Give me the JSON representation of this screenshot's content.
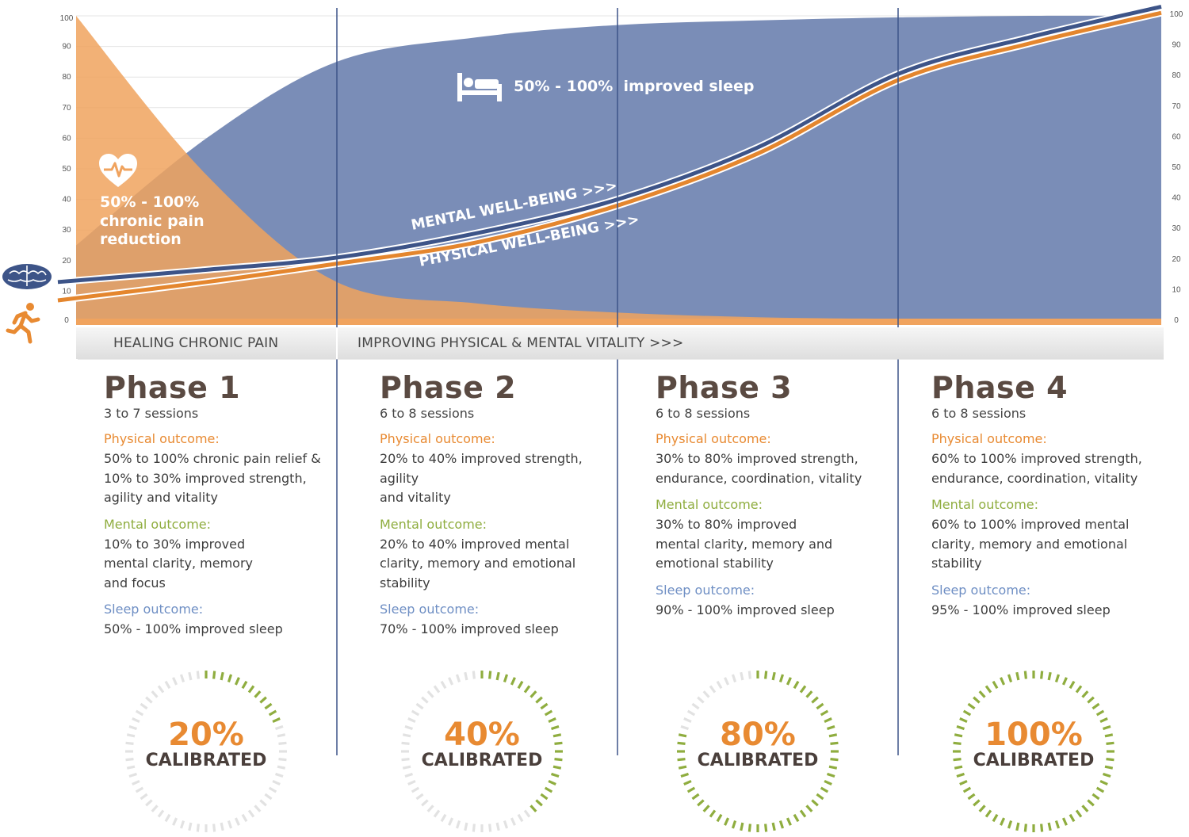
{
  "chart_data": {
    "type": "area",
    "x_phase_boundaries": [
      0,
      1,
      2,
      3,
      4
    ],
    "ylim": [
      0,
      100
    ],
    "yticks": [
      "0",
      "10",
      "20",
      "30",
      "40",
      "50",
      "60",
      "70",
      "80",
      "90",
      "100"
    ],
    "series": [
      {
        "role": "pain-area",
        "color": "#f0a35e",
        "x": [
          0,
          0.5,
          1,
          1.5,
          2,
          2.5,
          3,
          3.5,
          4
        ],
        "values": [
          100,
          48,
          13,
          6,
          3,
          1.5,
          1,
          1,
          1
        ]
      },
      {
        "role": "sleep-area",
        "color": "#7a8db7",
        "x": [
          0,
          0.5,
          1,
          1.5,
          2,
          2.5,
          3,
          3.5,
          4
        ],
        "values": [
          25,
          60,
          85,
          93,
          97,
          98.5,
          99.5,
          100,
          100
        ]
      },
      {
        "name": "MENTAL WELL-BEING >>>",
        "color": "#3d5488",
        "x": [
          -0.07,
          0.5,
          1,
          1.5,
          2,
          2.5,
          3,
          3.5,
          4
        ],
        "values": [
          13,
          17,
          21,
          29,
          40,
          57,
          81,
          93,
          103
        ]
      },
      {
        "name": "PHYSICAL WELL-BEING >>>",
        "color": "#e4862e",
        "x": [
          -0.07,
          0.5,
          1,
          1.5,
          2,
          2.5,
          3,
          3.5,
          4
        ],
        "values": [
          7,
          13,
          19,
          26,
          38,
          55,
          79,
          91,
          101
        ]
      }
    ],
    "annotations": {
      "sleep": "50% - 100%  improved sleep",
      "pain": "50% - 100%\nchronic pain\nreduction"
    },
    "grid": true
  },
  "icons": {
    "heart": "heart-pulse-icon",
    "bed": "bed-icon",
    "brain": "brain-icon",
    "runner": "runner-icon"
  },
  "colors": {
    "orange": "#e88a32",
    "blue": "#7a8db7",
    "dark_blue": "#3d5488",
    "green": "#8fad3f",
    "gray_track": "#dcdcdc"
  },
  "bands": {
    "left": "HEALING CHRONIC PAIN",
    "right": "IMPROVING  PHYSICAL & MENTAL VITALITY >>>"
  },
  "phases": [
    {
      "title": "Phase 1",
      "sessions": "3 to 7 sessions",
      "physical_label": "Physical outcome:",
      "physical": "50% to 100% chronic pain relief &\n10% to 30% improved strength,\nagility and vitality",
      "mental_label": "Mental outcome:",
      "mental": "10% to 30% improved\nmental clarity, memory\nand focus",
      "sleep_label": "Sleep outcome:",
      "sleep": "50% - 100% improved sleep",
      "percent": "20%",
      "percent_value": 0.2,
      "calibrated": "CALIBRATED"
    },
    {
      "title": "Phase 2",
      "sessions": "6 to 8 sessions",
      "physical_label": "Physical outcome:",
      "physical": "20% to 40% improved strength,\nagility\nand vitality",
      "mental_label": "Mental outcome:",
      "mental": "20% to 40% improved mental\nclarity, memory and emotional\nstability",
      "sleep_label": "Sleep outcome:",
      "sleep": "70% - 100% improved sleep",
      "percent": "40%",
      "percent_value": 0.4,
      "calibrated": "CALIBRATED"
    },
    {
      "title": "Phase 3",
      "sessions": "6 to 8 sessions",
      "physical_label": "Physical outcome:",
      "physical": "30% to 80% improved strength,\nendurance, coordination, vitality",
      "mental_label": "Mental outcome:",
      "mental": "30% to 80% improved\nmental clarity, memory and\nemotional stability",
      "sleep_label": "Sleep outcome:",
      "sleep": "90% - 100% improved sleep",
      "percent": "80%",
      "percent_value": 0.8,
      "calibrated": "CALIBRATED"
    },
    {
      "title": "Phase 4",
      "sessions": "6 to 8 sessions",
      "physical_label": "Physical outcome:",
      "physical": "60% to 100% improved strength,\nendurance, coordination, vitality",
      "mental_label": "Mental outcome:",
      "mental": "60% to 100% improved mental\nclarity, memory and emotional\nstability",
      "sleep_label": "Sleep outcome:",
      "sleep": "95% - 100% improved sleep",
      "percent": "100%",
      "percent_value": 1.0,
      "calibrated": "CALIBRATED"
    }
  ]
}
